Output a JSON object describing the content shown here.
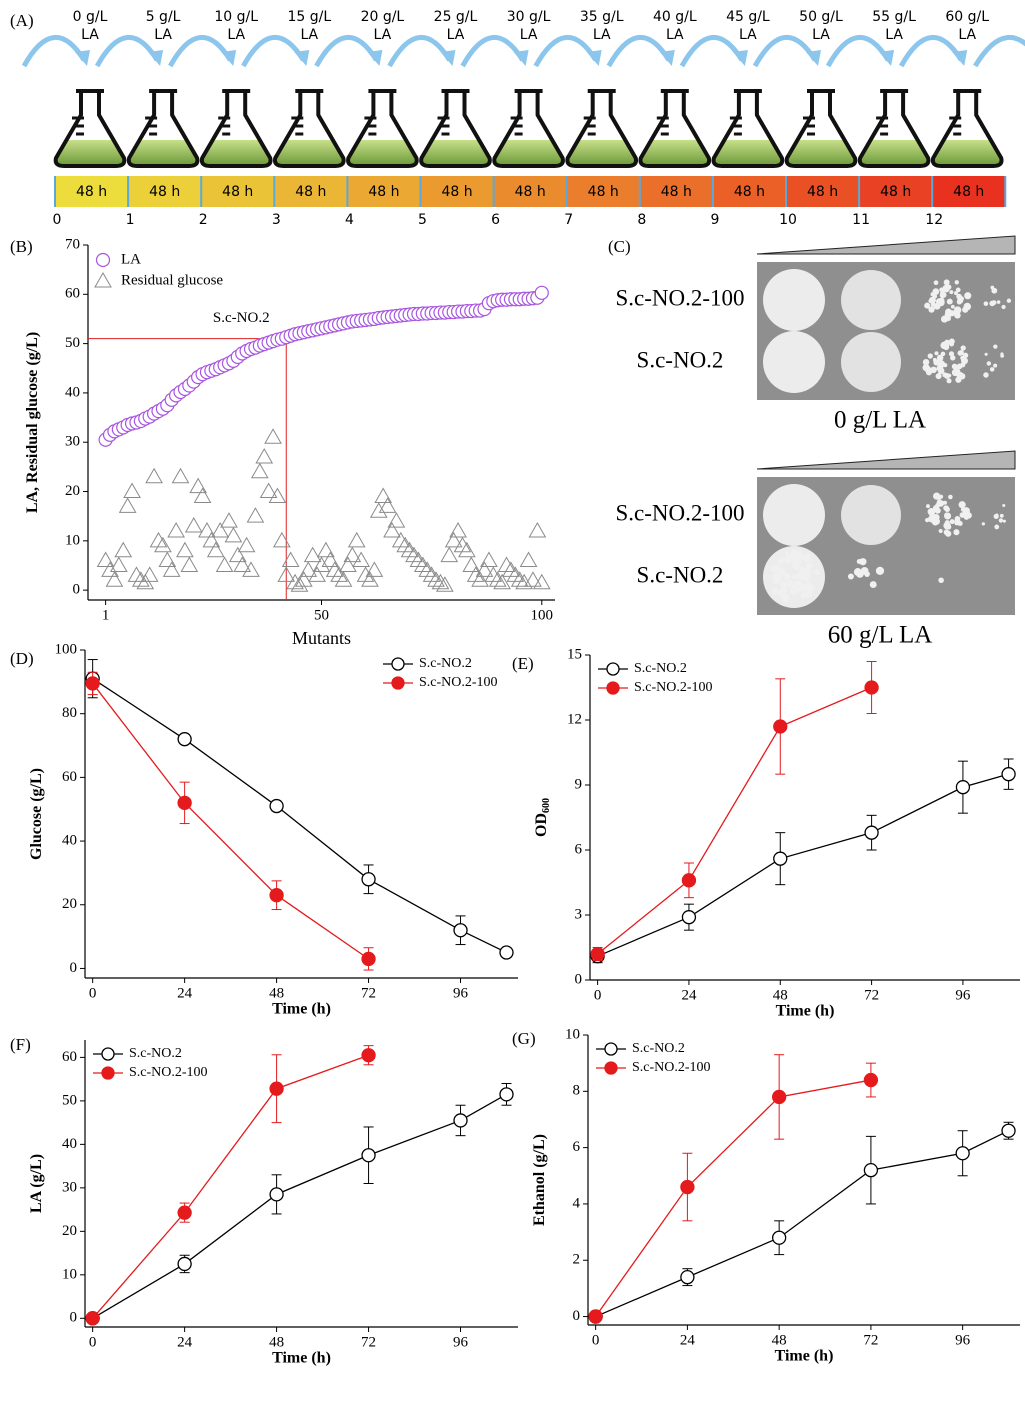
{
  "panel_a": {
    "label": "(A)",
    "concentrations": [
      [
        "0 g/L",
        "LA"
      ],
      [
        "5 g/L",
        "LA"
      ],
      [
        "10 g/L",
        "LA"
      ],
      [
        "15 g/L",
        "LA"
      ],
      [
        "20 g/L",
        "LA"
      ],
      [
        "25 g/L",
        "LA"
      ],
      [
        "30 g/L",
        "LA"
      ],
      [
        "35 g/L",
        "LA"
      ],
      [
        "40 g/L",
        "LA"
      ],
      [
        "45 g/L",
        "LA"
      ],
      [
        "50 g/L",
        "LA"
      ],
      [
        "55 g/L",
        "LA"
      ],
      [
        "60 g/L",
        "LA"
      ]
    ],
    "durations": [
      "48 h",
      "48 h",
      "48 h",
      "48 h",
      "48 h",
      "48 h",
      "48 h",
      "48 h",
      "48 h",
      "48 h",
      "48 h",
      "48 h",
      "48 h"
    ],
    "steps": [
      0,
      1,
      2,
      3,
      4,
      5,
      6,
      7,
      8,
      9,
      10,
      11,
      12
    ]
  },
  "panel_c": {
    "label": "(C)",
    "plates": [
      {
        "strains": [
          "S.c-NO.2-100",
          "S.c-NO.2"
        ],
        "caption": "0 g/L LA"
      },
      {
        "strains": [
          "S.c-NO.2-100",
          "S.c-NO.2"
        ],
        "caption": "60 g/L LA"
      }
    ]
  },
  "chart_data": [
    {
      "type": "scatter",
      "label": "(B)",
      "xlabel": "Mutants",
      "ylabel": "LA, Residual glucose (g/L)",
      "x": [
        1,
        2,
        3,
        4,
        5,
        6,
        7,
        8,
        9,
        10,
        11,
        12,
        13,
        14,
        15,
        16,
        17,
        18,
        19,
        20,
        21,
        22,
        23,
        24,
        25,
        26,
        27,
        28,
        29,
        30,
        31,
        32,
        33,
        34,
        35,
        36,
        37,
        38,
        39,
        40,
        41,
        42,
        43,
        44,
        45,
        46,
        47,
        48,
        49,
        50,
        51,
        52,
        53,
        54,
        55,
        56,
        57,
        58,
        59,
        60,
        61,
        62,
        63,
        64,
        65,
        66,
        67,
        68,
        69,
        70,
        71,
        72,
        73,
        74,
        75,
        76,
        77,
        78,
        79,
        80,
        81,
        82,
        83,
        84,
        85,
        86,
        87,
        88,
        89,
        90,
        91,
        92,
        93,
        94,
        95,
        96,
        97,
        98,
        99,
        100
      ],
      "series": [
        {
          "name": "LA",
          "color": "#a855e0",
          "marker": "circle",
          "values": [
            30.5,
            31.5,
            32.2,
            32.6,
            33.0,
            33.5,
            33.8,
            34.0,
            34.3,
            34.8,
            35.2,
            35.8,
            36.3,
            36.8,
            37.5,
            38.6,
            39.5,
            40.2,
            40.8,
            41.5,
            42.3,
            43.2,
            43.8,
            44.2,
            44.5,
            44.8,
            45.2,
            45.6,
            46.0,
            46.5,
            47.3,
            48.0,
            48.5,
            48.9,
            49.2,
            49.6,
            49.9,
            50.2,
            50.5,
            50.8,
            51.0,
            51.3,
            51.6,
            51.9,
            52.1,
            52.3,
            52.5,
            52.7,
            52.9,
            53.1,
            53.3,
            53.5,
            53.7,
            53.9,
            54.1,
            54.3,
            54.5,
            54.6,
            54.7,
            54.8,
            54.9,
            55.0,
            55.2,
            55.3,
            55.4,
            55.5,
            55.6,
            55.7,
            55.8,
            55.9,
            56.0,
            56.0,
            56.1,
            56.1,
            56.2,
            56.2,
            56.3,
            56.3,
            56.4,
            56.4,
            56.5,
            56.5,
            56.6,
            56.6,
            56.7,
            56.7,
            57.0,
            58.2,
            58.6,
            58.8,
            58.9,
            58.9,
            59.0,
            59.0,
            59.0,
            59.1,
            59.1,
            59.2,
            59.3,
            60.3
          ]
        },
        {
          "name": "Residual glucose",
          "color": "#8a8a8a",
          "marker": "triangle",
          "values": [
            6,
            4,
            2,
            5,
            8,
            17,
            20,
            3,
            2,
            1.5,
            3,
            23,
            10,
            9,
            6,
            4,
            12,
            23,
            8,
            5,
            13,
            21,
            19,
            12,
            10,
            8,
            12,
            5,
            14,
            11,
            7,
            5,
            9,
            4,
            15,
            24,
            27,
            20,
            31,
            19,
            10,
            3,
            6,
            1.5,
            1,
            2,
            4,
            7,
            3,
            5,
            8,
            6,
            4,
            3,
            2,
            5,
            7,
            10,
            6,
            3,
            2,
            4,
            16,
            19,
            17,
            12,
            14,
            10,
            9,
            8,
            7,
            6,
            5,
            4,
            3,
            2,
            1.5,
            1,
            7,
            10,
            12,
            9,
            8,
            5,
            3,
            2,
            4,
            6,
            3,
            2,
            1.5,
            5,
            4,
            3,
            2,
            1.5,
            6,
            2,
            12,
            1.5
          ]
        }
      ],
      "xlim": [
        -3,
        103
      ],
      "ylim": [
        -2,
        70
      ],
      "xticks": [
        1,
        50,
        100
      ],
      "yticks": [
        0,
        10,
        20,
        30,
        40,
        50,
        60,
        70
      ],
      "legend": "upper left",
      "annotation": {
        "text": "S.c-NO.2",
        "x": 42,
        "y": 51,
        "color": "#e02020"
      }
    },
    {
      "type": "line",
      "label": "(D)",
      "xlabel": "Time (h)",
      "ylabel": "Glucose (g/L)",
      "x": [
        0,
        24,
        48,
        72,
        96,
        108
      ],
      "series": [
        {
          "name": "S.c-NO.2",
          "color": "#000000",
          "marker": "open",
          "values": [
            91,
            72,
            51,
            28,
            12,
            5
          ],
          "errors": [
            6,
            1,
            1.5,
            4.5,
            4.5,
            0.5
          ]
        },
        {
          "name": "S.c-NO.2-100",
          "color": "#e41a1c",
          "marker": "filled",
          "values": [
            89.5,
            52,
            23,
            3,
            null,
            null
          ],
          "errors": [
            3.5,
            6.5,
            4.5,
            3.5,
            null,
            null
          ]
        }
      ],
      "xlim": [
        -2,
        111
      ],
      "ylim": [
        -3,
        100
      ],
      "xticks": [
        0,
        24,
        48,
        72,
        96
      ],
      "yticks": [
        0,
        20,
        40,
        60,
        80,
        100
      ],
      "legend": "upper right"
    },
    {
      "type": "line",
      "label": "(E)",
      "xlabel": "Time (h)",
      "ylabel": "OD",
      "ylabel_sub": "600",
      "x": [
        0,
        24,
        48,
        72,
        96,
        108
      ],
      "series": [
        {
          "name": "S.c-NO.2",
          "color": "#000000",
          "marker": "open",
          "values": [
            1.1,
            2.9,
            5.6,
            6.8,
            8.9,
            9.5
          ],
          "errors": [
            0.3,
            0.6,
            1.2,
            0.8,
            1.2,
            0.7
          ]
        },
        {
          "name": "S.c-NO.2-100",
          "color": "#e41a1c",
          "marker": "filled",
          "values": [
            1.2,
            4.6,
            11.7,
            13.5,
            null,
            null
          ],
          "errors": [
            0.3,
            0.8,
            2.2,
            1.2,
            null,
            null
          ]
        }
      ],
      "xlim": [
        -2,
        111
      ],
      "ylim": [
        0,
        15
      ],
      "xticks": [
        0,
        24,
        48,
        72,
        96
      ],
      "yticks": [
        0,
        3,
        6,
        9,
        12,
        15
      ],
      "legend": "upper left"
    },
    {
      "type": "line",
      "label": "(F)",
      "xlabel": "Time (h)",
      "ylabel": "LA (g/L)",
      "x": [
        0,
        24,
        48,
        72,
        96,
        108
      ],
      "series": [
        {
          "name": "S.c-NO.2",
          "color": "#000000",
          "marker": "open",
          "values": [
            0,
            12.5,
            28.5,
            37.5,
            45.5,
            51.5
          ],
          "errors": [
            0.5,
            2,
            4.5,
            6.5,
            3.5,
            2.5
          ]
        },
        {
          "name": "S.c-NO.2-100",
          "color": "#e41a1c",
          "marker": "filled",
          "values": [
            0,
            24.3,
            52.8,
            60.5,
            null,
            null
          ],
          "errors": [
            0.5,
            2.2,
            7.8,
            2.2,
            null,
            null
          ]
        }
      ],
      "xlim": [
        -2,
        111
      ],
      "ylim": [
        -2,
        64
      ],
      "xticks": [
        0,
        24,
        48,
        72,
        96
      ],
      "yticks": [
        0,
        10,
        20,
        30,
        40,
        50,
        60
      ],
      "legend": "upper left"
    },
    {
      "type": "line",
      "label": "(G)",
      "xlabel": "Time (h)",
      "ylabel": "Ethanol (g/L)",
      "x": [
        0,
        24,
        48,
        72,
        96,
        108
      ],
      "series": [
        {
          "name": "S.c-NO.2",
          "color": "#000000",
          "marker": "open",
          "values": [
            0,
            1.4,
            2.8,
            5.2,
            5.8,
            6.6
          ],
          "errors": [
            0.1,
            0.3,
            0.6,
            1.2,
            0.8,
            0.3
          ]
        },
        {
          "name": "S.c-NO.2-100",
          "color": "#e41a1c",
          "marker": "filled",
          "values": [
            0,
            4.6,
            7.8,
            8.4,
            null,
            null
          ],
          "errors": [
            0.1,
            1.2,
            1.5,
            0.6,
            null,
            null
          ]
        }
      ],
      "xlim": [
        -2,
        111
      ],
      "ylim": [
        -0.3,
        10
      ],
      "xticks": [
        0,
        24,
        48,
        72,
        96
      ],
      "yticks": [
        0,
        2,
        4,
        6,
        8,
        10
      ],
      "legend": "upper left"
    }
  ]
}
